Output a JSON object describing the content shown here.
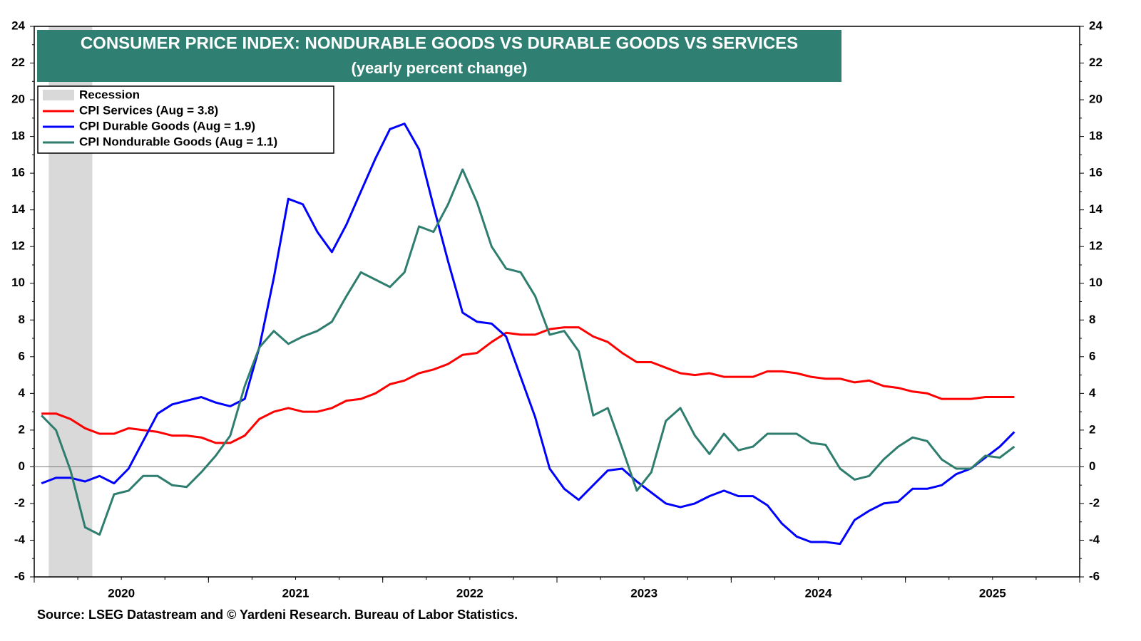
{
  "chart_data": {
    "type": "line",
    "title": "CONSUMER PRICE INDEX: NONDURABLE GOODS VS DURABLE GOODS VS SERVICES",
    "subtitle": "(yearly percent change)",
    "source": "Source: LSEG Datastream and © Yardeni Research. Bureau of Labor Statistics.",
    "recession": {
      "name": "Recession",
      "start": "2020-02",
      "end": "2020-04",
      "color": "#d9d9d9"
    },
    "x": [
      "2020-01",
      "2020-02",
      "2020-03",
      "2020-04",
      "2020-05",
      "2020-06",
      "2020-07",
      "2020-08",
      "2020-09",
      "2020-10",
      "2020-11",
      "2020-12",
      "2021-01",
      "2021-02",
      "2021-03",
      "2021-04",
      "2021-05",
      "2021-06",
      "2021-07",
      "2021-08",
      "2021-09",
      "2021-10",
      "2021-11",
      "2021-12",
      "2022-01",
      "2022-02",
      "2022-03",
      "2022-04",
      "2022-05",
      "2022-06",
      "2022-07",
      "2022-08",
      "2022-09",
      "2022-10",
      "2022-11",
      "2022-12",
      "2023-01",
      "2023-02",
      "2023-03",
      "2023-04",
      "2023-05",
      "2023-06",
      "2023-07",
      "2023-08",
      "2023-09",
      "2023-10",
      "2023-11",
      "2023-12",
      "2024-01",
      "2024-02",
      "2024-03",
      "2024-04",
      "2024-05",
      "2024-06",
      "2024-07",
      "2024-08",
      "2024-09",
      "2024-10",
      "2024-11",
      "2024-12",
      "2025-01",
      "2025-02",
      "2025-03",
      "2025-04",
      "2025-05",
      "2025-06",
      "2025-07",
      "2025-08"
    ],
    "xlim": [
      "2020-01",
      "2026-01"
    ],
    "xticks": [
      2020,
      2021,
      2022,
      2023,
      2024,
      2025
    ],
    "ylim": [
      -6,
      24
    ],
    "yticks": [
      -6,
      -4,
      -2,
      0,
      2,
      4,
      6,
      8,
      10,
      12,
      14,
      16,
      18,
      20,
      22,
      24
    ],
    "series": [
      {
        "name": "CPI Services (Aug = 3.8)",
        "color": "#ff0000",
        "values": [
          2.9,
          2.9,
          2.6,
          2.1,
          1.8,
          1.8,
          2.1,
          2.0,
          1.9,
          1.7,
          1.7,
          1.6,
          1.3,
          1.3,
          1.7,
          2.6,
          3.0,
          3.2,
          3.0,
          3.0,
          3.2,
          3.6,
          3.7,
          4.0,
          4.5,
          4.7,
          5.1,
          5.3,
          5.6,
          6.1,
          6.2,
          6.8,
          7.3,
          7.2,
          7.2,
          7.5,
          7.6,
          7.6,
          7.1,
          6.8,
          6.2,
          5.7,
          5.7,
          5.4,
          5.1,
          5.0,
          5.1,
          4.9,
          4.9,
          4.9,
          5.2,
          5.2,
          5.1,
          4.9,
          4.8,
          4.8,
          4.6,
          4.7,
          4.4,
          4.3,
          4.1,
          4.0,
          3.7,
          3.7,
          3.7,
          3.8,
          3.8,
          3.8
        ]
      },
      {
        "name": "CPI Durable Goods (Aug = 1.9)",
        "color": "#0000ff",
        "values": [
          -0.9,
          -0.6,
          -0.6,
          -0.8,
          -0.5,
          -0.9,
          -0.1,
          1.4,
          2.9,
          3.4,
          3.6,
          3.8,
          3.5,
          3.3,
          3.7,
          6.5,
          10.3,
          14.6,
          14.3,
          12.8,
          11.7,
          13.2,
          15.0,
          16.8,
          18.4,
          18.7,
          17.3,
          14.2,
          11.2,
          8.4,
          7.9,
          7.8,
          7.1,
          4.9,
          2.7,
          -0.1,
          -1.2,
          -1.8,
          -1.0,
          -0.2,
          -0.1,
          -0.8,
          -1.4,
          -2.0,
          -2.2,
          -2.0,
          -1.6,
          -1.3,
          -1.6,
          -1.6,
          -2.1,
          -3.1,
          -3.8,
          -4.1,
          -4.1,
          -4.2,
          -2.9,
          -2.4,
          -2.0,
          -1.9,
          -1.2,
          -1.2,
          -1.0,
          -0.4,
          -0.1,
          0.5,
          1.1,
          1.9
        ]
      },
      {
        "name": "CPI Nondurable Goods (Aug = 1.1)",
        "color": "#2e7d6e",
        "values": [
          2.8,
          2.0,
          -0.2,
          -3.3,
          -3.7,
          -1.5,
          -1.3,
          -0.5,
          -0.5,
          -1.0,
          -1.1,
          -0.3,
          0.6,
          1.7,
          4.4,
          6.5,
          7.4,
          6.7,
          7.1,
          7.4,
          7.9,
          9.3,
          10.6,
          10.2,
          9.8,
          10.6,
          13.1,
          12.8,
          14.3,
          16.2,
          14.4,
          12.0,
          10.8,
          10.6,
          9.3,
          7.2,
          7.4,
          6.3,
          2.8,
          3.2,
          1.0,
          -1.3,
          -0.3,
          2.5,
          3.2,
          1.7,
          0.7,
          1.8,
          0.9,
          1.1,
          1.8,
          1.8,
          1.8,
          1.3,
          1.2,
          -0.1,
          -0.7,
          -0.5,
          0.4,
          1.1,
          1.6,
          1.4,
          0.4,
          -0.1,
          -0.1,
          0.6,
          0.5,
          1.1
        ]
      }
    ]
  }
}
